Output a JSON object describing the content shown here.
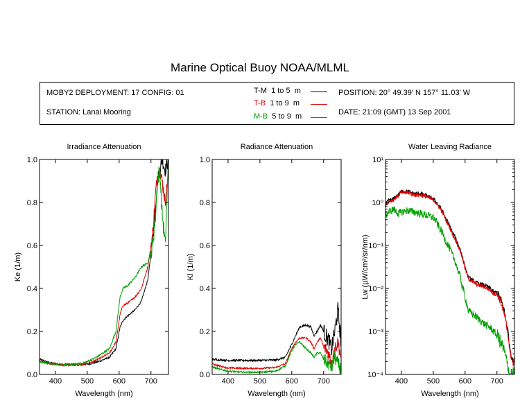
{
  "title": "Marine Optical Buoy NOAA/MLML",
  "info": {
    "deployment": "MOBY2 DEPLOYMENT: 17 CONFIG: 01",
    "station": "STATION: Lanai Mooring",
    "position": "POSITION: 20° 49.39' N   157° 11.03' W",
    "date": "DATE: 21:09 (GMT) 13 Sep 2001"
  },
  "legend": [
    {
      "code": "T-M",
      "range": "1 to 5",
      "unit": "m",
      "color": "#000000"
    },
    {
      "code": "T-B",
      "range": "1 to 9",
      "unit": "m",
      "color": "#dd0000"
    },
    {
      "code": "M-B",
      "range": "5 to 9",
      "unit": "m",
      "color": "#00a000"
    }
  ],
  "chart_data": [
    {
      "type": "line",
      "title": "Irradiance Attenuation",
      "xlabel": "Wavelength (nm)",
      "ylabel": "Ke  (1/m)",
      "xlim": [
        350,
        755
      ],
      "ylim": [
        0,
        1.0
      ],
      "xticks": [
        "400",
        "500",
        "600",
        "700"
      ],
      "yticks": [
        "0.0",
        "0.2",
        "0.4",
        "0.6",
        "0.8",
        "1.0"
      ],
      "series": [
        {
          "name": "T-M",
          "color": "#000000",
          "noise": 0.004,
          "x": [
            350,
            380,
            420,
            480,
            510,
            540,
            570,
            590,
            603,
            612,
            625,
            650,
            670,
            690,
            705,
            715,
            720,
            728,
            735,
            745,
            755
          ],
          "y": [
            0.07,
            0.055,
            0.045,
            0.045,
            0.05,
            0.062,
            0.08,
            0.12,
            0.22,
            0.25,
            0.27,
            0.3,
            0.34,
            0.44,
            0.62,
            0.8,
            0.9,
            0.95,
            1.0,
            0.95,
            1.0
          ]
        },
        {
          "name": "T-B",
          "color": "#dd0000",
          "noise": 0.004,
          "x": [
            350,
            380,
            420,
            480,
            510,
            540,
            570,
            590,
            603,
            612,
            625,
            650,
            670,
            690,
            705,
            715,
            720,
            728,
            735,
            745,
            755
          ],
          "y": [
            0.065,
            0.05,
            0.045,
            0.045,
            0.055,
            0.075,
            0.1,
            0.15,
            0.28,
            0.32,
            0.33,
            0.36,
            0.4,
            0.5,
            0.65,
            0.85,
            0.92,
            0.95,
            0.9,
            0.8,
            0.95
          ]
        },
        {
          "name": "M-B",
          "color": "#00a000",
          "noise": 0.005,
          "x": [
            350,
            380,
            420,
            480,
            510,
            540,
            570,
            590,
            603,
            612,
            625,
            650,
            670,
            690,
            705,
            715,
            720,
            728,
            735,
            745,
            755
          ],
          "y": [
            0.06,
            0.05,
            0.045,
            0.05,
            0.065,
            0.09,
            0.12,
            0.2,
            0.36,
            0.4,
            0.41,
            0.45,
            0.5,
            0.52,
            0.6,
            0.75,
            0.9,
            0.95,
            0.75,
            0.6,
            1.0
          ]
        }
      ]
    },
    {
      "type": "line",
      "title": "Radiance Attenuation",
      "xlabel": "Wavelength (nm)",
      "ylabel": "Kl  (1/m)",
      "xlim": [
        350,
        755
      ],
      "ylim": [
        0,
        1.0
      ],
      "xticks": [
        "400",
        "500",
        "600",
        "700"
      ],
      "yticks": [
        "0.0",
        "0.2",
        "0.4",
        "0.6",
        "0.8",
        "1.0"
      ],
      "series": [
        {
          "name": "T-M",
          "color": "#000000",
          "noise": 0.005,
          "x": [
            350,
            370,
            400,
            450,
            500,
            550,
            580,
            600,
            612,
            625,
            645,
            660,
            670,
            680,
            690,
            700,
            715,
            725,
            735,
            745,
            755
          ],
          "y": [
            0.07,
            0.068,
            0.065,
            0.065,
            0.065,
            0.067,
            0.08,
            0.14,
            0.18,
            0.22,
            0.23,
            0.22,
            0.18,
            0.2,
            0.23,
            0.2,
            0.16,
            0.12,
            0.2,
            0.3,
            0.15
          ]
        },
        {
          "name": "T-B",
          "color": "#dd0000",
          "noise": 0.004,
          "x": [
            350,
            370,
            400,
            450,
            500,
            550,
            580,
            600,
            612,
            625,
            645,
            660,
            670,
            680,
            690,
            700,
            715,
            725,
            735,
            745,
            755
          ],
          "y": [
            0.05,
            0.04,
            0.03,
            0.028,
            0.028,
            0.032,
            0.05,
            0.12,
            0.15,
            0.17,
            0.17,
            0.15,
            0.12,
            0.15,
            0.17,
            0.13,
            0.1,
            0.06,
            0.12,
            0.15,
            0.08
          ]
        },
        {
          "name": "M-B",
          "color": "#00a000",
          "noise": 0.004,
          "x": [
            350,
            370,
            400,
            450,
            500,
            550,
            580,
            600,
            612,
            625,
            645,
            660,
            670,
            680,
            690,
            700,
            715,
            725,
            735,
            745,
            755
          ],
          "y": [
            0.035,
            0.025,
            0.015,
            0.01,
            0.01,
            0.015,
            0.04,
            0.11,
            0.14,
            0.15,
            0.12,
            0.1,
            0.08,
            0.1,
            0.1,
            0.07,
            0.05,
            0.03,
            0.08,
            0.05,
            0.02
          ]
        }
      ]
    },
    {
      "type": "line",
      "title": "Water Leaving Radiance",
      "xlabel": "Wavelength (nm)",
      "ylabel": "Lw  (µW/cm²/sr/nm)",
      "xlim": [
        350,
        755
      ],
      "ylim": [
        0.0001,
        10
      ],
      "yscale": "log",
      "xticks": [
        "400",
        "500",
        "600",
        "700"
      ],
      "yticks": [
        "10⁻⁴",
        "10⁻³",
        "10⁻²",
        "10⁻¹",
        "10⁰",
        "10¹"
      ],
      "series": [
        {
          "name": "T-M",
          "color": "#000000",
          "noise": 0.05,
          "x": [
            350,
            360,
            375,
            390,
            400,
            420,
            440,
            460,
            480,
            500,
            520,
            540,
            560,
            575,
            590,
            600,
            610,
            625,
            640,
            660,
            680,
            690,
            700,
            710,
            720,
            730,
            740,
            750
          ],
          "y": [
            0.9,
            1.1,
            1.2,
            1.5,
            1.8,
            1.8,
            1.6,
            1.6,
            1.4,
            1.2,
            0.8,
            0.4,
            0.2,
            0.12,
            0.06,
            0.03,
            0.018,
            0.015,
            0.013,
            0.012,
            0.01,
            0.008,
            0.008,
            0.006,
            0.0035,
            0.0015,
            0.0004,
            0.0002
          ]
        },
        {
          "name": "T-B",
          "color": "#dd0000",
          "noise": 0.05,
          "x": [
            350,
            360,
            375,
            390,
            400,
            420,
            440,
            460,
            480,
            500,
            520,
            540,
            560,
            575,
            590,
            600,
            610,
            625,
            640,
            660,
            680,
            690,
            700,
            710,
            720,
            730,
            740,
            750
          ],
          "y": [
            0.9,
            1.05,
            1.15,
            1.45,
            1.7,
            1.7,
            1.5,
            1.5,
            1.35,
            1.15,
            0.75,
            0.38,
            0.18,
            0.11,
            0.055,
            0.028,
            0.017,
            0.014,
            0.012,
            0.011,
            0.009,
            0.0075,
            0.0075,
            0.0055,
            0.003,
            0.0013,
            0.00035,
            0.00018
          ]
        },
        {
          "name": "M-B",
          "color": "#00a000",
          "noise": 0.09,
          "x": [
            350,
            360,
            375,
            390,
            400,
            420,
            440,
            460,
            480,
            500,
            520,
            540,
            560,
            575,
            590,
            600,
            610,
            625,
            640,
            660,
            680,
            690,
            700,
            710,
            720,
            730,
            740,
            750
          ],
          "y": [
            0.5,
            0.6,
            0.7,
            0.55,
            0.6,
            0.65,
            0.6,
            0.55,
            0.5,
            0.45,
            0.25,
            0.12,
            0.06,
            0.03,
            0.012,
            0.006,
            0.003,
            0.0025,
            0.002,
            0.0015,
            0.0012,
            0.001,
            0.0008,
            0.0006,
            0.0004,
            0.0002,
            0.0001,
            0.0001
          ]
        }
      ]
    }
  ]
}
